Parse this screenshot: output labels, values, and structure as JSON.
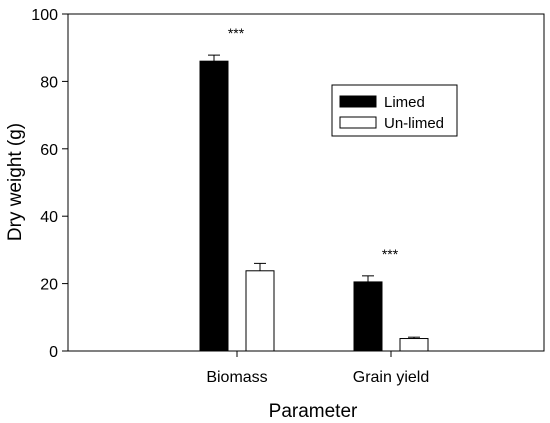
{
  "chart_data": {
    "type": "bar",
    "title": "",
    "xlabel": "Parameter",
    "ylabel": "Dry weight (g)",
    "ylim": [
      0,
      100
    ],
    "yticks": [
      0,
      20,
      40,
      60,
      80,
      100
    ],
    "categories": [
      "Biomass",
      "Grain yield"
    ],
    "series": [
      {
        "name": "Limed",
        "color": "#000000",
        "values": [
          86,
          20.5
        ],
        "errors": [
          1.8,
          1.8
        ]
      },
      {
        "name": "Un-limed",
        "color": "#ffffff",
        "values": [
          23.8,
          3.7
        ],
        "errors": [
          2.2,
          0.4
        ]
      }
    ],
    "annotations": [
      "***",
      "***"
    ],
    "legend_position": "top-right",
    "grid": false
  }
}
